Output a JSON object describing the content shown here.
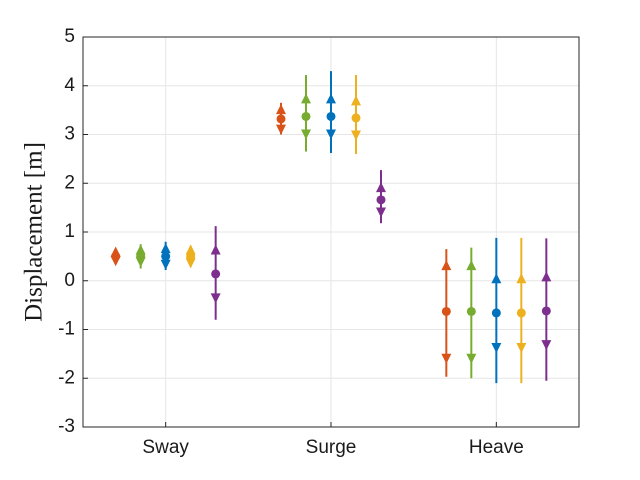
{
  "chart_data": {
    "type": "range",
    "y_label": "Displacement [m]",
    "categories": [
      "Sway",
      "Surge",
      "Heave"
    ],
    "ylim": [
      -3,
      5
    ],
    "yticks": [
      -3,
      -2,
      -1,
      0,
      1,
      2,
      3,
      4,
      5
    ],
    "grid": true,
    "series": [
      {
        "color": "#D95319",
        "mean": [
          0.5,
          3.32,
          -0.63
        ],
        "upper": [
          0.58,
          3.5,
          0.3
        ],
        "lower": [
          0.42,
          3.12,
          -1.58
        ],
        "max": [
          0.62,
          3.65,
          0.65
        ],
        "min": [
          0.38,
          3.0,
          -1.97
        ]
      },
      {
        "color": "#77AC30",
        "mean": [
          0.5,
          3.37,
          -0.63
        ],
        "upper": [
          0.62,
          3.72,
          0.3
        ],
        "lower": [
          0.4,
          3.02,
          -1.58
        ],
        "max": [
          0.75,
          4.22,
          0.68
        ],
        "min": [
          0.25,
          2.65,
          -2.0
        ]
      },
      {
        "color": "#0072BD",
        "mean": [
          0.5,
          3.37,
          -0.66
        ],
        "upper": [
          0.65,
          3.72,
          0.03
        ],
        "lower": [
          0.35,
          3.02,
          -1.36
        ],
        "max": [
          0.8,
          4.3,
          0.88
        ],
        "min": [
          0.22,
          2.62,
          -2.1
        ]
      },
      {
        "color": "#EDB120",
        "mean": [
          0.5,
          3.34,
          -0.66
        ],
        "upper": [
          0.62,
          3.68,
          0.03
        ],
        "lower": [
          0.38,
          3.0,
          -1.36
        ],
        "max": [
          0.72,
          4.22,
          0.88
        ],
        "min": [
          0.28,
          2.6,
          -2.1
        ]
      },
      {
        "color": "#7E2F8E",
        "mean": [
          0.14,
          1.66,
          -0.62
        ],
        "upper": [
          0.62,
          1.9,
          0.07
        ],
        "lower": [
          -0.34,
          1.42,
          -1.3
        ],
        "max": [
          1.12,
          2.27,
          0.87
        ],
        "min": [
          -0.8,
          1.18,
          -2.05
        ]
      }
    ]
  }
}
